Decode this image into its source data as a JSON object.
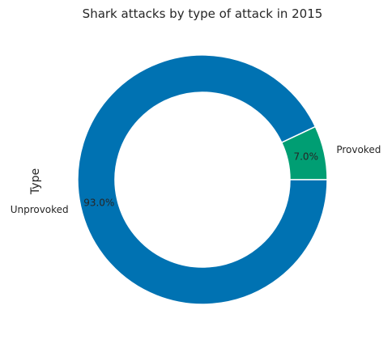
{
  "chart_data": {
    "type": "pie",
    "donut": true,
    "title": "Shark attacks by type of attack in 2015",
    "ylabel": "Type",
    "slices": [
      {
        "label": "Provoked",
        "value": 7.0,
        "pct_label": "7.0%",
        "color": "#009e73"
      },
      {
        "label": "Unprovoked",
        "value": 93.0,
        "pct_label": "93.0%",
        "color": "#0072b2"
      }
    ],
    "start_angle_deg": 0,
    "legend": "none"
  }
}
